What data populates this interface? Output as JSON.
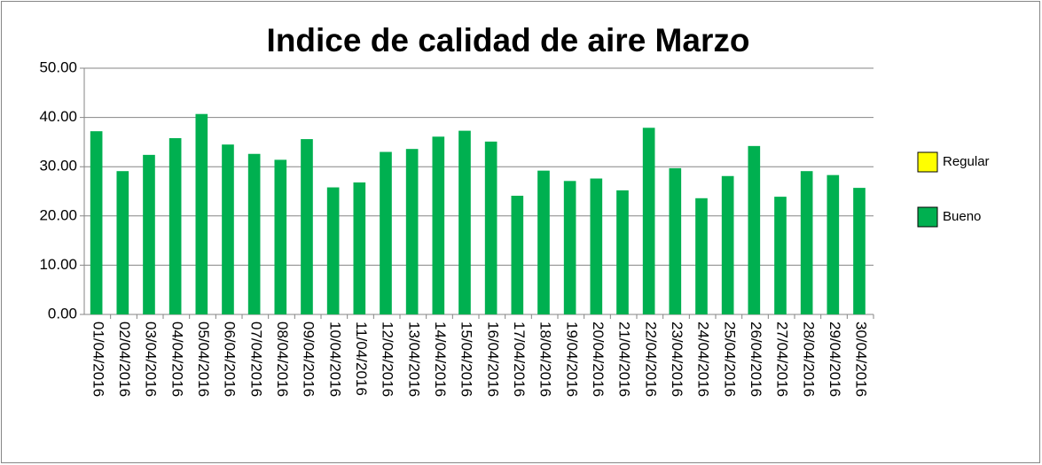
{
  "chart_data": {
    "type": "bar",
    "title": "Indice de calidad de aire Marzo",
    "categories": [
      "01/04/2016",
      "02/04/2016",
      "03/04/2016",
      "04/04/2016",
      "05/04/2016",
      "06/04/2016",
      "07/04/2016",
      "08/04/2016",
      "09/04/2016",
      "10/04/2016",
      "11/04/2016",
      "12/04/2016",
      "13/04/2016",
      "14/04/2016",
      "15/04/2016",
      "16/04/2016",
      "17/04/2016",
      "18/04/2016",
      "19/04/2016",
      "20/04/2016",
      "21/04/2016",
      "22/04/2016",
      "23/04/2016",
      "24/04/2016",
      "25/04/2016",
      "26/04/2016",
      "27/04/2016",
      "28/04/2016",
      "29/04/2016",
      "30/04/2016"
    ],
    "series": [
      {
        "name": "Regular",
        "color": "#ffff00",
        "values": [
          null,
          null,
          null,
          null,
          null,
          null,
          null,
          null,
          null,
          null,
          null,
          null,
          null,
          null,
          null,
          null,
          null,
          null,
          null,
          null,
          null,
          null,
          null,
          null,
          null,
          null,
          null,
          null,
          null,
          null
        ]
      },
      {
        "name": "Bueno",
        "color": "#00b050",
        "values": [
          37.2,
          29.1,
          32.4,
          35.8,
          40.7,
          34.5,
          32.6,
          31.4,
          35.6,
          25.8,
          26.8,
          33.0,
          33.6,
          36.1,
          37.3,
          35.1,
          24.1,
          29.2,
          27.1,
          27.6,
          25.2,
          37.9,
          29.7,
          23.6,
          28.1,
          34.2,
          23.9,
          29.1,
          28.3,
          25.7
        ]
      }
    ],
    "ylim": [
      0,
      50
    ],
    "yticks": [
      {
        "value": 0,
        "label": "0.00"
      },
      {
        "value": 10,
        "label": "10.00"
      },
      {
        "value": 20,
        "label": "20.00"
      },
      {
        "value": 30,
        "label": "30.00"
      },
      {
        "value": 40,
        "label": "40.00"
      },
      {
        "value": 50,
        "label": "50.00"
      }
    ],
    "grid": true
  }
}
